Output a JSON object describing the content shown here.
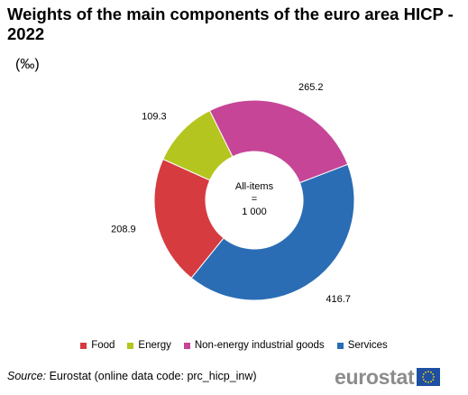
{
  "chart_data": {
    "type": "pie",
    "title": "Weights of the main components of the euro area HICP - 2022",
    "unit": "(‰)",
    "center_label": [
      "All-items",
      "=",
      "1 000"
    ],
    "slices": [
      {
        "label": "Services",
        "value": 416.7,
        "display": "416.7",
        "color": "#2a6db5"
      },
      {
        "label": "Food",
        "value": 208.9,
        "display": "208.9",
        "color": "#d63b3f"
      },
      {
        "label": "Energy",
        "value": 109.3,
        "display": "109.3",
        "color": "#b5c51f"
      },
      {
        "label": "Non-energy industrial goods",
        "value": 265.2,
        "display": "265.2",
        "color": "#c64597"
      }
    ],
    "legend": [
      {
        "label": "Food",
        "color": "#d63b3f"
      },
      {
        "label": "Energy",
        "color": "#b5c51f"
      },
      {
        "label": "Non-energy industrial goods",
        "color": "#c64597"
      },
      {
        "label": "Services",
        "color": "#2a6db5"
      }
    ],
    "legend_position": "bottom"
  },
  "source": {
    "label": "Source:",
    "text": " Eurostat (online data code: prc_hicp_inw)"
  },
  "logo": {
    "text": "eurostat"
  }
}
